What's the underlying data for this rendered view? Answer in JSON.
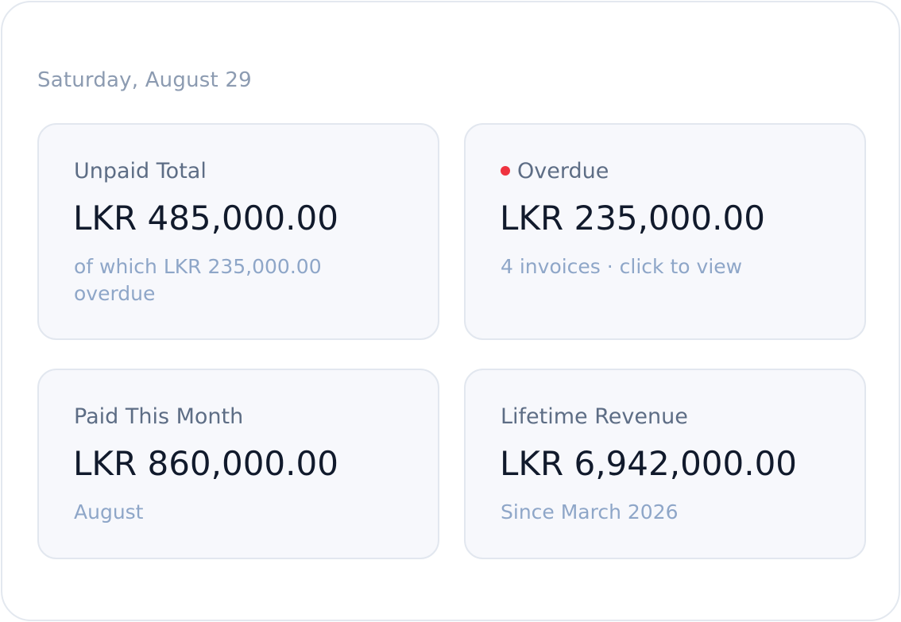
{
  "header": {
    "date": "Saturday, August 29"
  },
  "cards": [
    {
      "label": "Unpaid Total",
      "value": "LKR 485,000.00",
      "subtitle": "of which LKR 235,000.00 overdue"
    },
    {
      "label": "Overdue",
      "value": "LKR 235,000.00",
      "subtitle": "4 invoices · click to view",
      "indicator_color": "#ef3340"
    },
    {
      "label": "Paid This Month",
      "value": "LKR 860,000.00",
      "subtitle": "August"
    },
    {
      "label": "Lifetime Revenue",
      "value": "LKR 6,942,000.00",
      "subtitle": "Since March 2026"
    }
  ]
}
